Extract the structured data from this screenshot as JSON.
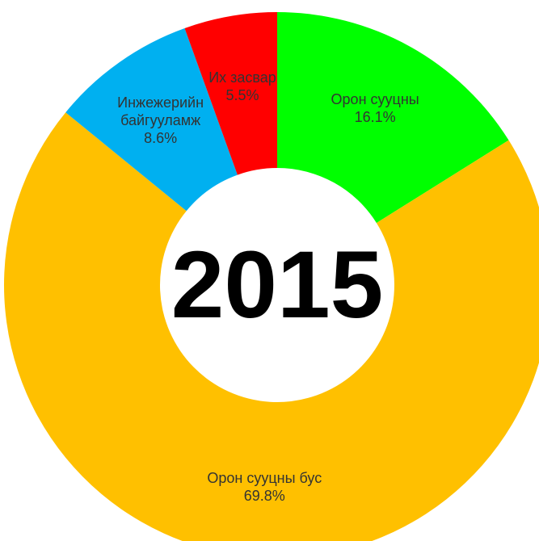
{
  "chart_data": {
    "type": "donut",
    "center_text": "2015",
    "categories": [
      "Орон сууцны",
      "Орон сууцны бус",
      "Инжежерийн байгууламж",
      "Их засвар"
    ],
    "values": [
      16.1,
      69.8,
      8.6,
      5.5
    ],
    "value_labels": [
      "16.1%",
      "69.8%",
      "8.6%",
      "5.5%"
    ],
    "colors": [
      "#00ff00",
      "#ffc000",
      "#00b0f0",
      "#ff0000"
    ]
  }
}
